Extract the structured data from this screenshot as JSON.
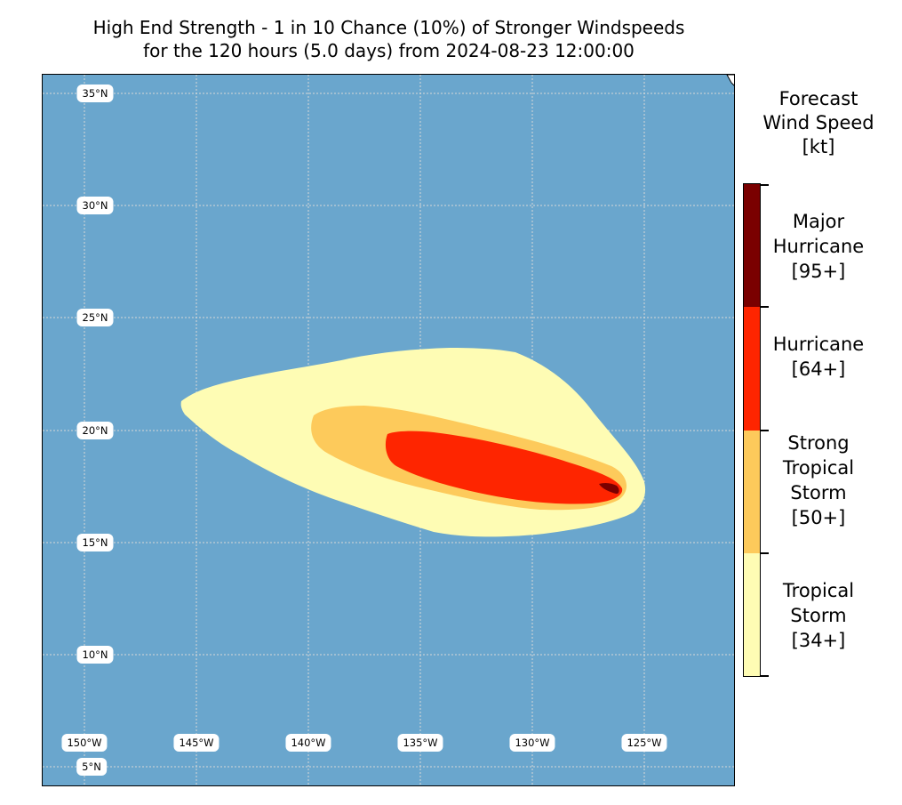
{
  "title": {
    "line1": "High End Strength - 1 in 10 Chance (10%) of Stronger Windspeeds",
    "line2": "for the 120 hours (5.0 days) from 2024-08-23 12:00:00"
  },
  "map": {
    "ocean_color": "#6aa6cd",
    "lat_labels": [
      "35°N",
      "30°N",
      "25°N",
      "20°N",
      "15°N",
      "10°N",
      "5°N"
    ],
    "lon_labels": [
      "150°W",
      "145°W",
      "140°W",
      "135°W",
      "130°W",
      "125°W"
    ],
    "wind_zones": [
      {
        "category": "Tropical Storm",
        "color": "#fefcb4"
      },
      {
        "category": "Strong Tropical Storm",
        "color": "#fdca5b"
      },
      {
        "category": "Hurricane",
        "color": "#fe2500"
      },
      {
        "category": "Major Hurricane",
        "color": "#7a0000"
      }
    ]
  },
  "colorbar": {
    "title_lines": [
      "Forecast",
      "Wind Speed",
      "[kt]"
    ],
    "categories": [
      {
        "lines": [
          "Major",
          "Hurricane",
          "[95+]"
        ],
        "color": "#7a0000"
      },
      {
        "lines": [
          "Hurricane",
          "[64+]"
        ],
        "color": "#fe2500"
      },
      {
        "lines": [
          "Strong",
          "Tropical",
          "Storm",
          "[50+]"
        ],
        "color": "#fdca5b"
      },
      {
        "lines": [
          "Tropical",
          "Storm",
          "[34+]"
        ],
        "color": "#fefcb4"
      }
    ]
  }
}
